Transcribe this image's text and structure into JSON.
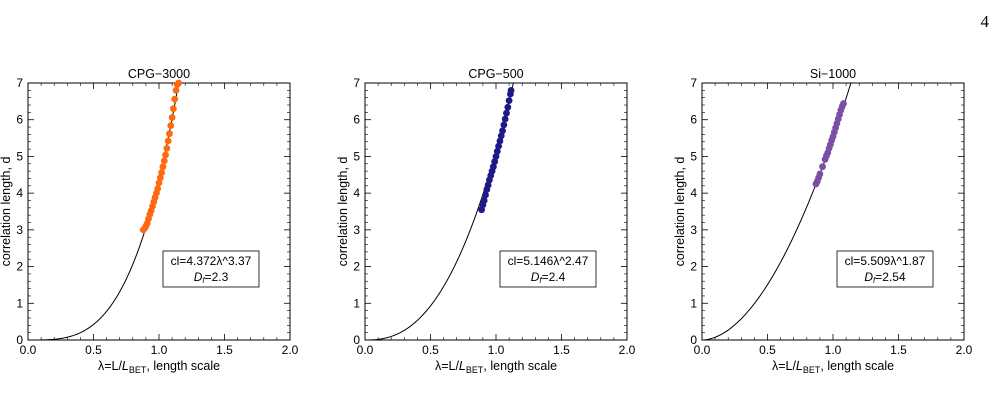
{
  "page": {
    "number": "4"
  },
  "chart_data": [
    {
      "type": "scatter",
      "title": "CPG−3000",
      "xlabel_parts": [
        "λ=L/",
        "L",
        "BET",
        ", length scale"
      ],
      "ylabel": "correlation length, d",
      "xlim": [
        0,
        2
      ],
      "ylim": [
        0,
        7
      ],
      "xticks": [
        "0.0",
        "0.5",
        "1.0",
        "1.5",
        "2.0"
      ],
      "yticks": [
        "0",
        "1",
        "2",
        "3",
        "4",
        "5",
        "6",
        "7"
      ],
      "color": "#ff6a10",
      "fit": {
        "coef": 4.372,
        "exp": 3.37
      },
      "annotation": {
        "line1": "cl=4.372λ^3.37",
        "df_label": "D",
        "df_sub": "f",
        "df_value": "=2.3"
      },
      "points": [
        [
          0.88,
          3.0
        ],
        [
          0.89,
          3.04
        ],
        [
          0.9,
          3.1
        ],
        [
          0.91,
          3.18
        ],
        [
          0.92,
          3.3
        ],
        [
          0.93,
          3.42
        ],
        [
          0.94,
          3.52
        ],
        [
          0.95,
          3.64
        ],
        [
          0.96,
          3.76
        ],
        [
          0.97,
          3.88
        ],
        [
          0.98,
          4.0
        ],
        [
          0.99,
          4.12
        ],
        [
          1.0,
          4.28
        ],
        [
          1.01,
          4.42
        ],
        [
          1.02,
          4.56
        ],
        [
          1.03,
          4.72
        ],
        [
          1.04,
          4.88
        ],
        [
          1.05,
          5.04
        ],
        [
          1.06,
          5.22
        ],
        [
          1.07,
          5.42
        ],
        [
          1.08,
          5.62
        ],
        [
          1.09,
          5.84
        ],
        [
          1.1,
          6.06
        ],
        [
          1.11,
          6.3
        ],
        [
          1.12,
          6.56
        ],
        [
          1.13,
          6.8
        ],
        [
          1.14,
          6.96
        ],
        [
          1.15,
          7.0
        ]
      ]
    },
    {
      "type": "scatter",
      "title": "CPG−500",
      "xlabel_parts": [
        "λ=L/",
        "L",
        "BET",
        ", length scale"
      ],
      "ylabel": "correlation length, d",
      "xlim": [
        0,
        2
      ],
      "ylim": [
        0,
        7
      ],
      "xticks": [
        "0.0",
        "0.5",
        "1.0",
        "1.5",
        "2.0"
      ],
      "yticks": [
        "0",
        "1",
        "2",
        "3",
        "4",
        "5",
        "6",
        "7"
      ],
      "color": "#1c1a86",
      "fit": {
        "coef": 5.146,
        "exp": 2.47
      },
      "annotation": {
        "line1": "cl=5.146λ^2.47",
        "df_label": "D",
        "df_sub": "f",
        "df_value": "=2.4"
      },
      "points": [
        [
          0.89,
          3.55
        ],
        [
          0.9,
          3.68
        ],
        [
          0.91,
          3.8
        ],
        [
          0.92,
          3.95
        ],
        [
          0.93,
          4.1
        ],
        [
          0.94,
          4.22
        ],
        [
          0.95,
          4.36
        ],
        [
          0.96,
          4.48
        ],
        [
          0.97,
          4.6
        ],
        [
          0.98,
          4.72
        ],
        [
          0.99,
          4.86
        ],
        [
          1.0,
          5.0
        ],
        [
          1.01,
          5.14
        ],
        [
          1.02,
          5.28
        ],
        [
          1.03,
          5.42
        ],
        [
          1.04,
          5.56
        ],
        [
          1.05,
          5.7
        ],
        [
          1.06,
          5.86
        ],
        [
          1.07,
          6.02
        ],
        [
          1.08,
          6.18
        ],
        [
          1.09,
          6.34
        ],
        [
          1.1,
          6.52
        ],
        [
          1.11,
          6.7
        ],
        [
          1.115,
          6.8
        ]
      ]
    },
    {
      "type": "scatter",
      "title": "Si−1000",
      "xlabel_parts": [
        "λ=L/",
        "L",
        "BET",
        ", length scale"
      ],
      "ylabel": "correlation length, d",
      "xlim": [
        0,
        2
      ],
      "ylim": [
        0,
        7
      ],
      "xticks": [
        "0.0",
        "0.5",
        "1.0",
        "1.5",
        "2.0"
      ],
      "yticks": [
        "0",
        "1",
        "2",
        "3",
        "4",
        "5",
        "6",
        "7"
      ],
      "color": "#7b4fa6",
      "fit": {
        "coef": 5.509,
        "exp": 1.87
      },
      "annotation": {
        "line1": "cl=5.509λ^1.87",
        "df_label": "D",
        "df_sub": "f",
        "df_value": "=2.54"
      },
      "points": [
        [
          0.87,
          4.25
        ],
        [
          0.88,
          4.32
        ],
        [
          0.89,
          4.42
        ],
        [
          0.9,
          4.52
        ],
        [
          0.92,
          4.72
        ],
        [
          0.94,
          4.92
        ],
        [
          0.95,
          5.02
        ],
        [
          0.96,
          5.1
        ],
        [
          0.97,
          5.22
        ],
        [
          0.98,
          5.32
        ],
        [
          0.99,
          5.44
        ],
        [
          1.0,
          5.54
        ],
        [
          1.01,
          5.66
        ],
        [
          1.02,
          5.78
        ],
        [
          1.03,
          5.9
        ],
        [
          1.04,
          6.02
        ],
        [
          1.05,
          6.14
        ],
        [
          1.06,
          6.26
        ],
        [
          1.07,
          6.36
        ],
        [
          1.08,
          6.44
        ]
      ]
    }
  ]
}
